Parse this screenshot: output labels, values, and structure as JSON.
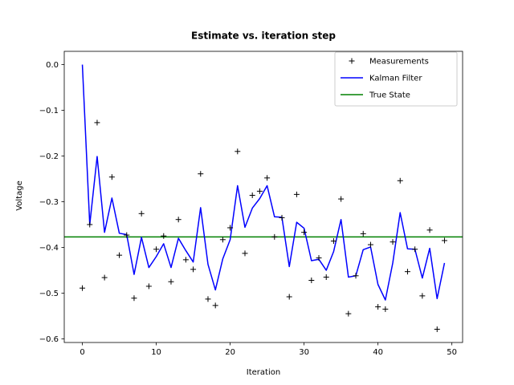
{
  "chart_data": {
    "type": "line",
    "title": "Estimate vs. iteration step",
    "xlabel": "Iteration",
    "ylabel": "Voltage",
    "xlim": [
      -2.45,
      51.45
    ],
    "ylim": [
      -0.608,
      0.029
    ],
    "xticks": [
      0,
      10,
      20,
      30,
      40,
      50
    ],
    "xtick_labels": [
      "0",
      "10",
      "20",
      "30",
      "40",
      "50"
    ],
    "yticks": [
      0.0,
      -0.1,
      -0.2,
      -0.3,
      -0.4,
      -0.5,
      -0.6
    ],
    "ytick_labels": [
      "0.0",
      "−0.1",
      "−0.2",
      "−0.3",
      "−0.4",
      "−0.5",
      "−0.6"
    ],
    "grid": false,
    "legend_position": "top-right",
    "series": [
      {
        "name": "Measurements",
        "kind": "marker",
        "marker": "+",
        "color": "#000000",
        "x": [
          0,
          1,
          2,
          3,
          4,
          5,
          6,
          7,
          8,
          9,
          10,
          11,
          12,
          13,
          14,
          15,
          16,
          17,
          18,
          19,
          20,
          21,
          22,
          23,
          24,
          25,
          26,
          27,
          28,
          29,
          30,
          31,
          32,
          33,
          34,
          35,
          36,
          37,
          38,
          39,
          40,
          41,
          42,
          43,
          44,
          45,
          46,
          47,
          48,
          49
        ],
        "y": [
          -0.489,
          -0.35,
          -0.127,
          -0.466,
          -0.246,
          -0.417,
          -0.373,
          -0.511,
          -0.326,
          -0.485,
          -0.404,
          -0.375,
          -0.475,
          -0.339,
          -0.427,
          -0.448,
          -0.239,
          -0.513,
          -0.527,
          -0.383,
          -0.357,
          -0.19,
          -0.413,
          -0.286,
          -0.277,
          -0.248,
          -0.377,
          -0.335,
          -0.508,
          -0.284,
          -0.367,
          -0.472,
          -0.423,
          -0.465,
          -0.386,
          -0.294,
          -0.545,
          -0.462,
          -0.37,
          -0.394,
          -0.53,
          -0.535,
          -0.388,
          -0.254,
          -0.453,
          -0.404,
          -0.506,
          -0.362,
          -0.579,
          -0.385
        ]
      },
      {
        "name": "Kalman Filter",
        "kind": "line",
        "color": "#0000ff",
        "x": [
          0,
          1,
          2,
          3,
          4,
          5,
          6,
          7,
          8,
          9,
          10,
          11,
          12,
          13,
          14,
          15,
          16,
          17,
          18,
          19,
          20,
          21,
          22,
          23,
          24,
          25,
          26,
          27,
          28,
          29,
          30,
          31,
          32,
          33,
          34,
          35,
          36,
          37,
          38,
          39,
          40,
          41,
          42,
          43,
          44,
          45,
          46,
          47,
          48,
          49
        ],
        "y": [
          0.0,
          -0.35,
          -0.201,
          -0.367,
          -0.292,
          -0.369,
          -0.372,
          -0.459,
          -0.378,
          -0.444,
          -0.42,
          -0.392,
          -0.444,
          -0.38,
          -0.407,
          -0.432,
          -0.313,
          -0.437,
          -0.493,
          -0.425,
          -0.383,
          -0.265,
          -0.356,
          -0.314,
          -0.293,
          -0.265,
          -0.333,
          -0.334,
          -0.442,
          -0.345,
          -0.358,
          -0.429,
          -0.426,
          -0.45,
          -0.409,
          -0.339,
          -0.465,
          -0.462,
          -0.405,
          -0.399,
          -0.481,
          -0.515,
          -0.434,
          -0.324,
          -0.403,
          -0.404,
          -0.467,
          -0.402,
          -0.512,
          -0.434
        ]
      },
      {
        "name": "True State",
        "kind": "hline",
        "color": "#008000",
        "y": -0.377
      }
    ]
  }
}
